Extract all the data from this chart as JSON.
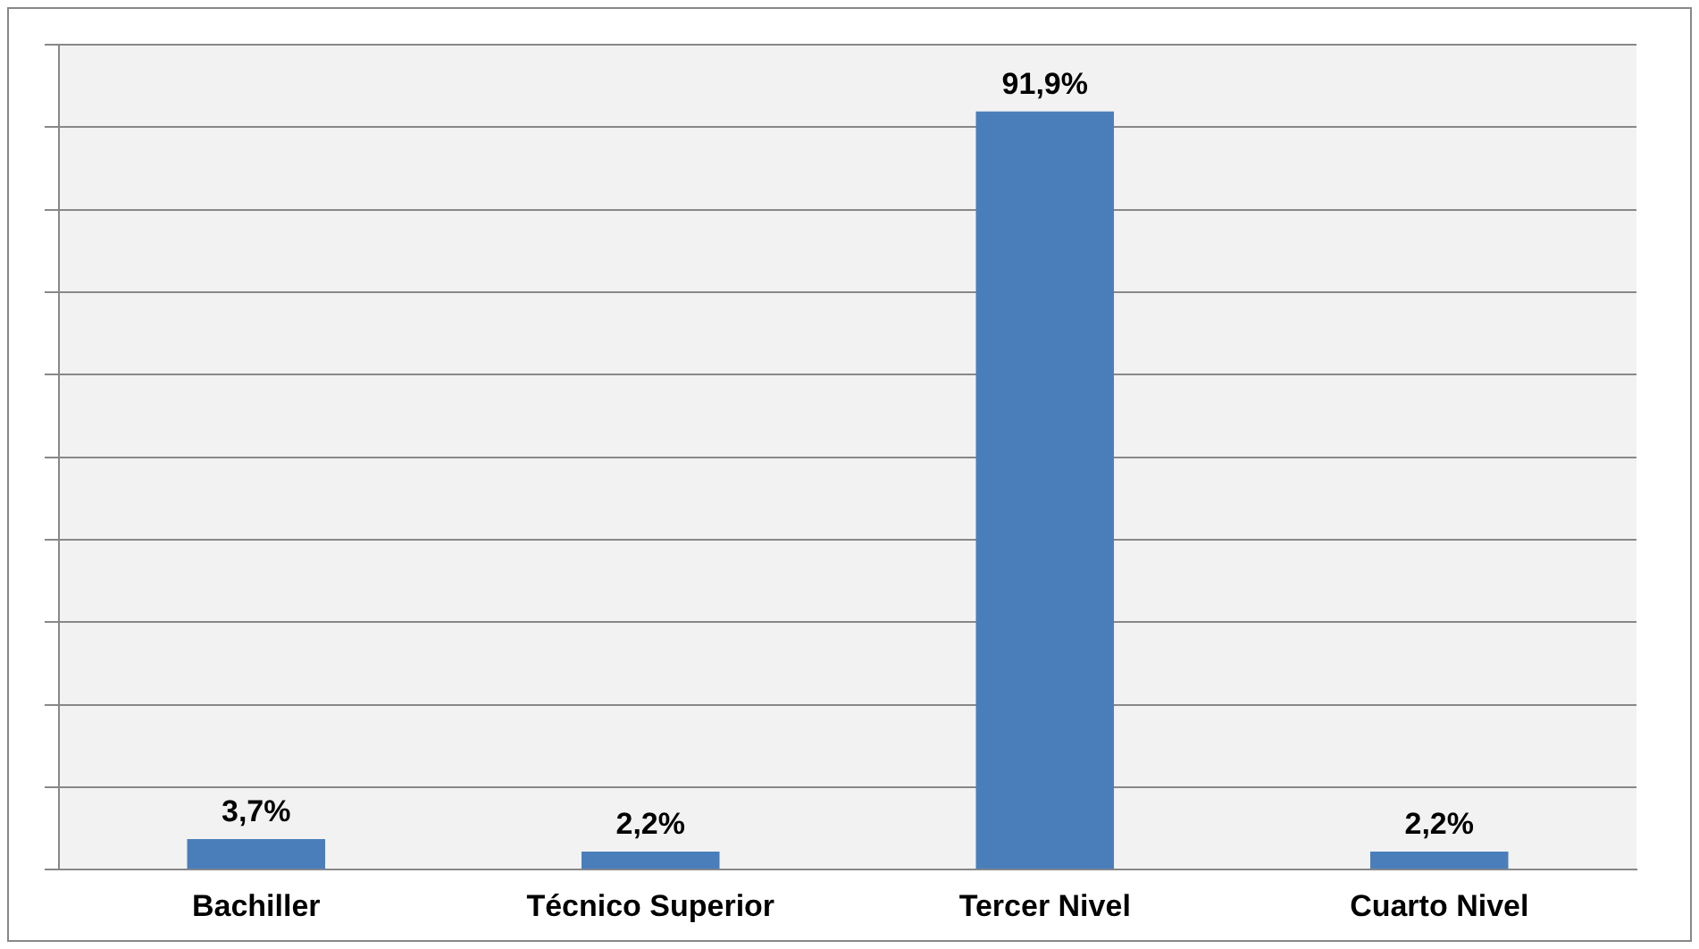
{
  "chart_data": {
    "type": "bar",
    "categories": [
      "Bachiller",
      "Técnico Superior",
      "Tercer Nivel",
      "Cuarto Nivel"
    ],
    "values": [
      3.7,
      2.2,
      91.9,
      2.2
    ],
    "value_labels": [
      "3,7%",
      "2,2%",
      "91,9%",
      "2,2%"
    ],
    "color": "#4a7ebb",
    "ylim": [
      0,
      100
    ],
    "yticks": [
      {
        "value": 0,
        "label": null
      },
      {
        "value": 10,
        "label": null
      },
      {
        "value": 20,
        "label": null
      },
      {
        "value": 30,
        "label": null
      },
      {
        "value": 40,
        "label": null
      },
      {
        "value": 50,
        "label": null
      },
      {
        "value": 60,
        "label": null
      },
      {
        "value": 70,
        "label": null
      },
      {
        "value": 80,
        "label": null
      },
      {
        "value": 90,
        "label": null
      },
      {
        "value": 100,
        "label": null
      }
    ],
    "tick_labels": "x",
    "grid": "y",
    "legend": false
  }
}
